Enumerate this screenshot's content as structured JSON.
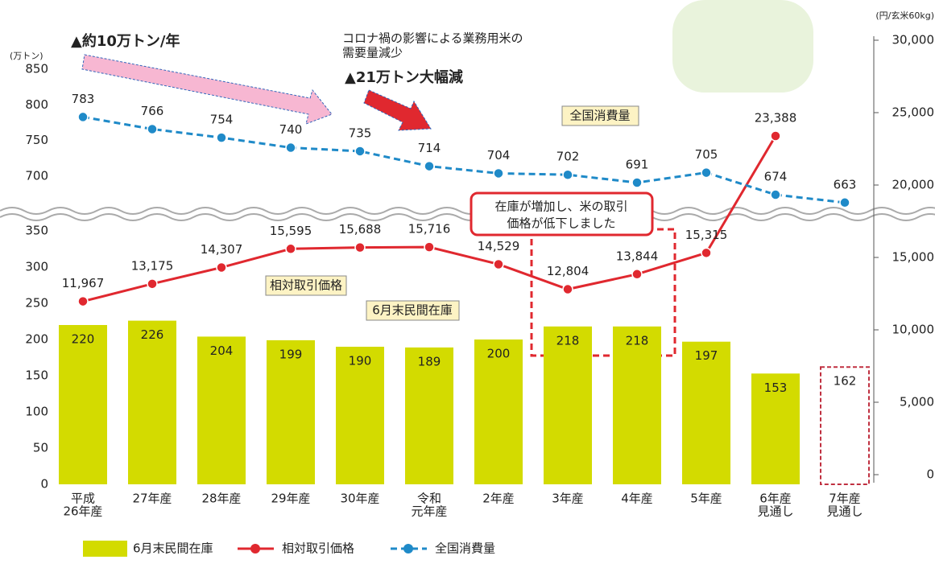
{
  "chart_data": {
    "type": "combo",
    "annotations": {
      "trend_long": "▲約10万トン/年",
      "covid_line1": "コロナ禍の影響による業務用米の",
      "covid_line2": "需要量減少",
      "trend_drop": "▲21万トン大幅減",
      "callout_line1": "在庫が増加し、米の取引",
      "callout_line2": "価格が低下しました",
      "tag_consumption": "全国消費量",
      "tag_price": "相対取引価格",
      "tag_stock": "6月末民間在庫"
    },
    "y_label": "(万トン)",
    "y2_label": "(円/玄米60kg)",
    "categories": [
      [
        "平成",
        "26年産"
      ],
      [
        "27年産"
      ],
      [
        "28年産"
      ],
      [
        "29年産"
      ],
      [
        "30年産"
      ],
      [
        "令和",
        "元年産"
      ],
      [
        "2年産"
      ],
      [
        "3年産"
      ],
      [
        "4年産"
      ],
      [
        "5年産"
      ],
      [
        "6年産",
        "見通し"
      ],
      [
        "7年産",
        "見通し"
      ]
    ],
    "ylim": [
      0,
      350
    ],
    "yticks": [
      0,
      50,
      100,
      150,
      200,
      250,
      300,
      350
    ],
    "ylim_upper": [
      700,
      850
    ],
    "yticks_upper": [
      700,
      750,
      800,
      850
    ],
    "y2lim": [
      0,
      30000
    ],
    "y2ticks": [
      0,
      {
        "value": 5000,
        "label": "5,000"
      },
      {
        "value": 10000,
        "label": "10,000"
      },
      {
        "value": 15000,
        "label": "15,000"
      },
      {
        "value": 20000,
        "label": "20,000"
      },
      {
        "value": 25000,
        "label": "25,000"
      },
      {
        "value": 30000,
        "label": "30,000"
      }
    ],
    "series": [
      {
        "name": "6月末民間在庫",
        "type": "bar",
        "color": "#d3db00",
        "values": [
          220,
          226,
          204,
          199,
          190,
          189,
          200,
          218,
          218,
          197,
          153,
          162
        ]
      },
      {
        "name": "相対取引価格",
        "type": "line",
        "axis": "y2",
        "color": "#e0282f",
        "values": [
          11967,
          13175,
          14307,
          15595,
          15688,
          15716,
          14529,
          12804,
          13844,
          15315,
          23388,
          null
        ],
        "value_labels": [
          "11,967",
          "13,175",
          "14,307",
          "15,595",
          "15,688",
          "15,716",
          "14,529",
          "12,804",
          "13,844",
          "15,315",
          "23,388",
          null
        ]
      },
      {
        "name": "全国消費量",
        "type": "line",
        "axis": "y_upper",
        "dashed": true,
        "color": "#1f8ac8",
        "values": [
          783,
          766,
          754,
          740,
          735,
          714,
          704,
          702,
          691,
          705,
          674,
          663
        ]
      }
    ]
  }
}
